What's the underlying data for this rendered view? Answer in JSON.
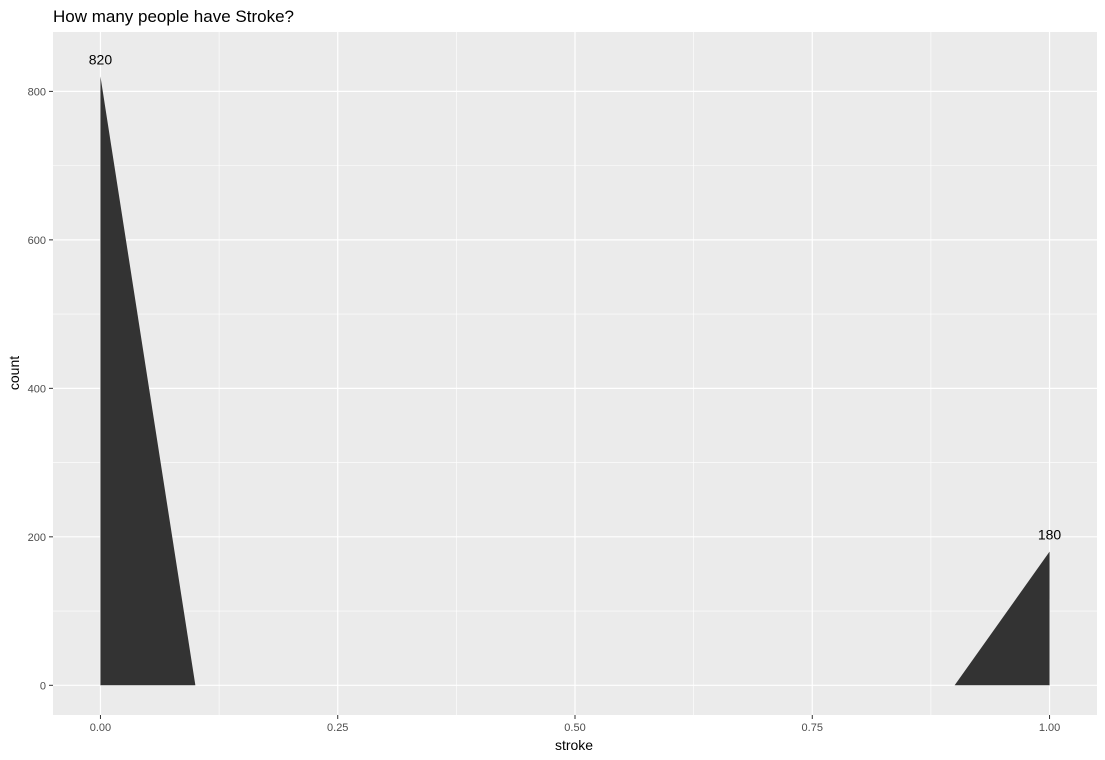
{
  "chart_data": {
    "type": "area",
    "title": "How many people have Stroke?",
    "xlabel": "stroke",
    "ylabel": "count",
    "xlim": [
      -0.05,
      1.05
    ],
    "ylim": [
      -40,
      880
    ],
    "x_ticks": [
      0.0,
      0.25,
      0.5,
      0.75,
      1.0
    ],
    "x_tick_labels": [
      "0.00",
      "0.25",
      "0.50",
      "0.75",
      "1.00"
    ],
    "y_ticks": [
      0,
      200,
      400,
      600,
      800
    ],
    "y_tick_labels": [
      "0",
      "200",
      "400",
      "600",
      "800"
    ],
    "grid": true,
    "background": "#ebebeb",
    "fill_color": "#333333",
    "series": [
      {
        "values": [
          {
            "x": 0.0,
            "y": 0
          },
          {
            "x": 0.0,
            "y": 820
          },
          {
            "x": 0.1,
            "y": 0
          }
        ]
      },
      {
        "values": [
          {
            "x": 0.9,
            "y": 0
          },
          {
            "x": 1.0,
            "y": 180
          },
          {
            "x": 1.0,
            "y": 0
          }
        ]
      }
    ],
    "labels": [
      {
        "x": 0.0,
        "y": 820,
        "text": "820"
      },
      {
        "x": 1.0,
        "y": 180,
        "text": "180"
      }
    ]
  }
}
